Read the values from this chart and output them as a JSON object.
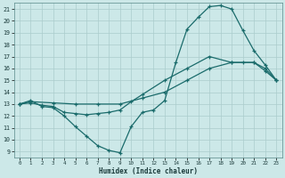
{
  "xlabel": "Humidex (Indice chaleur)",
  "bg_color": "#cce8e8",
  "grid_color": "#aacccc",
  "line_color": "#1a6b6b",
  "xlim": [
    -0.5,
    23.5
  ],
  "ylim": [
    8.5,
    21.5
  ],
  "xticks": [
    0,
    1,
    2,
    3,
    4,
    5,
    6,
    7,
    8,
    9,
    10,
    11,
    12,
    13,
    14,
    15,
    16,
    17,
    18,
    19,
    20,
    21,
    22,
    23
  ],
  "yticks": [
    9,
    10,
    11,
    12,
    13,
    14,
    15,
    16,
    17,
    18,
    19,
    20,
    21
  ],
  "curve1_x": [
    0,
    1,
    2,
    3,
    4,
    5,
    6,
    7,
    8,
    9,
    10,
    11,
    12,
    13,
    14,
    15,
    16,
    17,
    18,
    19,
    20,
    21,
    22,
    23
  ],
  "curve1_y": [
    13,
    13.3,
    12.8,
    12.7,
    12.0,
    11.1,
    10.3,
    9.5,
    9.1,
    8.9,
    11.1,
    12.3,
    12.5,
    13.3,
    16.5,
    19.3,
    20.3,
    21.2,
    21.3,
    21.0,
    19.2,
    17.5,
    16.3,
    15.0
  ],
  "curve2_x": [
    0,
    1,
    3,
    5,
    7,
    9,
    11,
    13,
    15,
    17,
    19,
    20,
    21,
    22,
    23
  ],
  "curve2_y": [
    13,
    13.2,
    13.1,
    13.0,
    13.0,
    13.0,
    13.5,
    14.0,
    15.0,
    16.0,
    16.5,
    16.5,
    16.5,
    16.0,
    15.0
  ],
  "curve3_x": [
    0,
    1,
    2,
    3,
    4,
    5,
    6,
    7,
    8,
    9,
    10,
    11,
    13,
    15,
    17,
    19,
    21,
    22,
    23
  ],
  "curve3_y": [
    13,
    13.1,
    12.9,
    12.8,
    12.3,
    12.2,
    12.1,
    12.2,
    12.3,
    12.5,
    13.2,
    13.8,
    15.0,
    16.0,
    17.0,
    16.5,
    16.5,
    15.8,
    15.0
  ]
}
